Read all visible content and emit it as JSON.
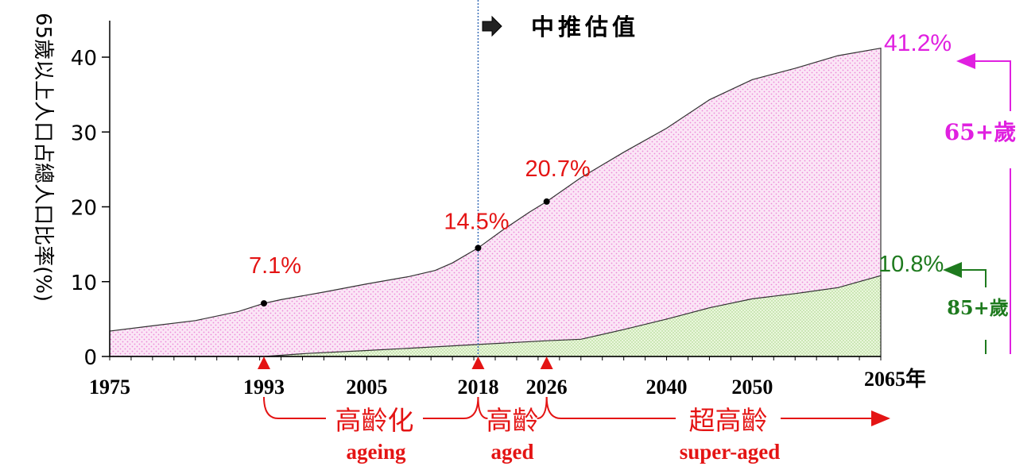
{
  "chart_data": {
    "type": "area",
    "title": "中推估值",
    "ylabel": "65歲以上人口占總人口比率(%)",
    "xlabel": "",
    "x_unit": "年",
    "ylim": [
      0,
      45
    ],
    "xlim": [
      1975,
      2065
    ],
    "y_ticks": [
      "0",
      "10",
      "20",
      "30",
      "40"
    ],
    "x_ticks": [
      "1975",
      "1993",
      "2005",
      "2018",
      "2026",
      "2040",
      "2050",
      "2065"
    ],
    "x_end_label": "2065年",
    "projection_start": 2018,
    "series": [
      {
        "name": "65+歲",
        "color": "#e040e0",
        "x": [
          1975,
          1980,
          1985,
          1990,
          1993,
          1995,
          2000,
          2005,
          2010,
          2013,
          2015,
          2018,
          2021,
          2024,
          2026,
          2030,
          2035,
          2040,
          2045,
          2050,
          2055,
          2060,
          2065
        ],
        "y": [
          3.4,
          4.1,
          4.8,
          6.0,
          7.1,
          7.6,
          8.6,
          9.7,
          10.7,
          11.5,
          12.5,
          14.5,
          17.0,
          19.3,
          20.7,
          23.9,
          27.3,
          30.5,
          34.3,
          37.0,
          38.5,
          40.2,
          41.2
        ]
      },
      {
        "name": "85+歲",
        "color": "#1e7a1e",
        "x": [
          1975,
          1980,
          1985,
          1993,
          1998,
          2005,
          2010,
          2018,
          2026,
          2030,
          2035,
          2040,
          2045,
          2050,
          2055,
          2060,
          2065
        ],
        "y": [
          0,
          0,
          0,
          0,
          0.4,
          0.8,
          1.1,
          1.6,
          2.1,
          2.3,
          3.6,
          5.0,
          6.5,
          7.7,
          8.4,
          9.2,
          10.8
        ]
      }
    ],
    "milestones": [
      {
        "year": 1993,
        "value": 7.1,
        "label": "7.1%"
      },
      {
        "year": 2018,
        "value": 14.5,
        "label": "14.5%"
      },
      {
        "year": 2026,
        "value": 20.7,
        "label": "20.7%"
      }
    ],
    "end_labels": {
      "p65": {
        "label": "41.2%",
        "group": "65+歲"
      },
      "p85": {
        "label": "10.8%",
        "group": "85+歲"
      }
    },
    "phases": [
      {
        "from": 1993,
        "to": 2018,
        "label": "高齡化",
        "en": "ageing"
      },
      {
        "from": 2018,
        "to": 2026,
        "label": "高齡",
        "en": "aged"
      },
      {
        "from": 2026,
        "to": 2065,
        "label": "超高齡",
        "en": "super-aged"
      }
    ],
    "colors": {
      "fill65": "#f8d8f0",
      "fill85": "#e4f4d0",
      "milestone": "#e41414",
      "vline": "#3b6fb8"
    }
  }
}
